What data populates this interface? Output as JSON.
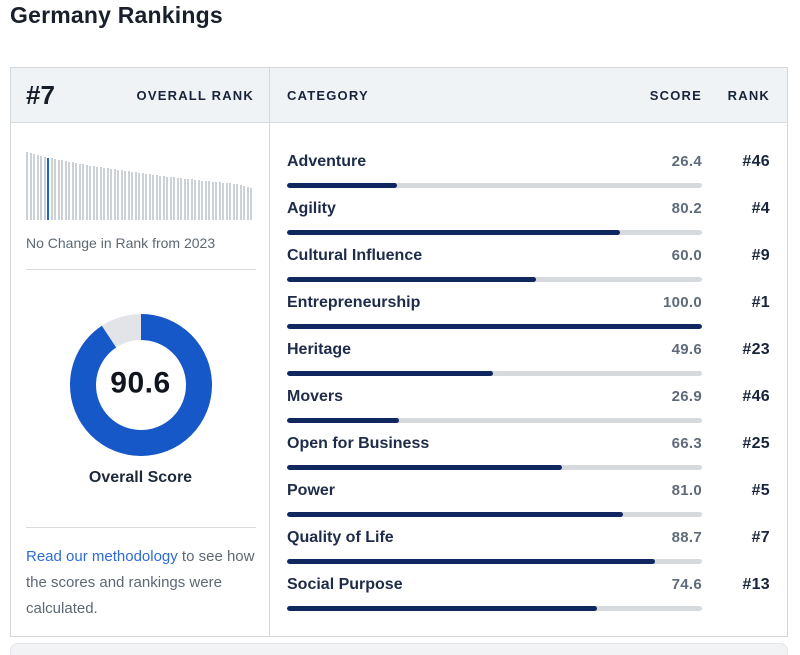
{
  "page": {
    "title": "Germany Rankings"
  },
  "overall_panel": {
    "rank": "#7",
    "rank_label": "OVERALL RANK",
    "rank_change_note": "No Change in Rank from 2023",
    "score_display": "90.6",
    "score_value": 90.6,
    "score_max": 100,
    "score_label": "Overall Score"
  },
  "methodology": {
    "link_text": "Read our methodology",
    "suffix_text": " to see how the scores and rankings were calculated."
  },
  "table": {
    "headers": {
      "category": "CATEGORY",
      "score": "SCORE",
      "rank": "RANK"
    },
    "rows": [
      {
        "category": "Adventure",
        "score": "26.4",
        "score_value": 26.4,
        "rank": "#46"
      },
      {
        "category": "Agility",
        "score": "80.2",
        "score_value": 80.2,
        "rank": "#4"
      },
      {
        "category": "Cultural Influence",
        "score": "60.0",
        "score_value": 60.0,
        "rank": "#9"
      },
      {
        "category": "Entrepreneurship",
        "score": "100.0",
        "score_value": 100.0,
        "rank": "#1"
      },
      {
        "category": "Heritage",
        "score": "49.6",
        "score_value": 49.6,
        "rank": "#23"
      },
      {
        "category": "Movers",
        "score": "26.9",
        "score_value": 26.9,
        "rank": "#46"
      },
      {
        "category": "Open for Business",
        "score": "66.3",
        "score_value": 66.3,
        "rank": "#25"
      },
      {
        "category": "Power",
        "score": "81.0",
        "score_value": 81.0,
        "rank": "#5"
      },
      {
        "category": "Quality of Life",
        "score": "88.7",
        "score_value": 88.7,
        "rank": "#7"
      },
      {
        "category": "Social Purpose",
        "score": "74.6",
        "score_value": 74.6,
        "rank": "#13"
      }
    ]
  },
  "chart_data": [
    {
      "name": "category_scores",
      "type": "bar",
      "orientation": "horizontal",
      "title": "Germany category scores",
      "categories": [
        "Adventure",
        "Agility",
        "Cultural Influence",
        "Entrepreneurship",
        "Heritage",
        "Movers",
        "Open for Business",
        "Power",
        "Quality of Life",
        "Social Purpose"
      ],
      "values": [
        26.4,
        80.2,
        60.0,
        100.0,
        49.6,
        26.9,
        66.3,
        81.0,
        88.7,
        74.6
      ],
      "rank_labels": [
        "#46",
        "#4",
        "#9",
        "#1",
        "#23",
        "#46",
        "#25",
        "#5",
        "#7",
        "#13"
      ],
      "xlim": [
        0,
        100
      ],
      "grid": false,
      "legend": false
    },
    {
      "name": "overall_score_donut",
      "type": "pie",
      "title": "Overall Score",
      "labels": [
        "score",
        "remainder"
      ],
      "values": [
        90.6,
        9.4
      ],
      "center_label": "90.6",
      "start_angle_deg": 0,
      "direction": "clockwise"
    },
    {
      "name": "rank_distribution",
      "type": "bar",
      "title": "Overall rank position among countries (Germany highlighted)",
      "highlight_index": 6,
      "values": [
        68,
        67,
        66,
        65,
        64,
        63,
        62,
        62,
        61,
        60,
        60,
        59,
        58,
        58,
        57,
        56,
        56,
        55,
        54,
        54,
        53,
        53,
        52,
        52,
        51,
        51,
        50,
        50,
        49,
        49,
        48,
        48,
        47,
        47,
        46,
        46,
        45,
        45,
        44,
        44,
        43,
        43,
        43,
        42,
        42,
        41,
        41,
        41,
        40,
        40,
        39,
        39,
        39,
        38,
        38,
        38,
        37,
        37,
        37,
        36,
        36,
        35,
        34,
        33,
        32
      ],
      "grid": false,
      "legend": false
    }
  ],
  "colors": {
    "accent_blue": "#1658c8",
    "bar_navy": "#10275f",
    "link_blue": "#2d6bd9",
    "dark_navy_text": "#18243a",
    "muted_text": "#5d6874",
    "track_gray": "#d7dadd",
    "donut_track": "#e2e4e7",
    "sparkline_gray": "#ccd1d6",
    "sparkline_highlight": "#2261d3",
    "header_bg": "#f0f3f6",
    "card_border": "#d5d8db"
  }
}
